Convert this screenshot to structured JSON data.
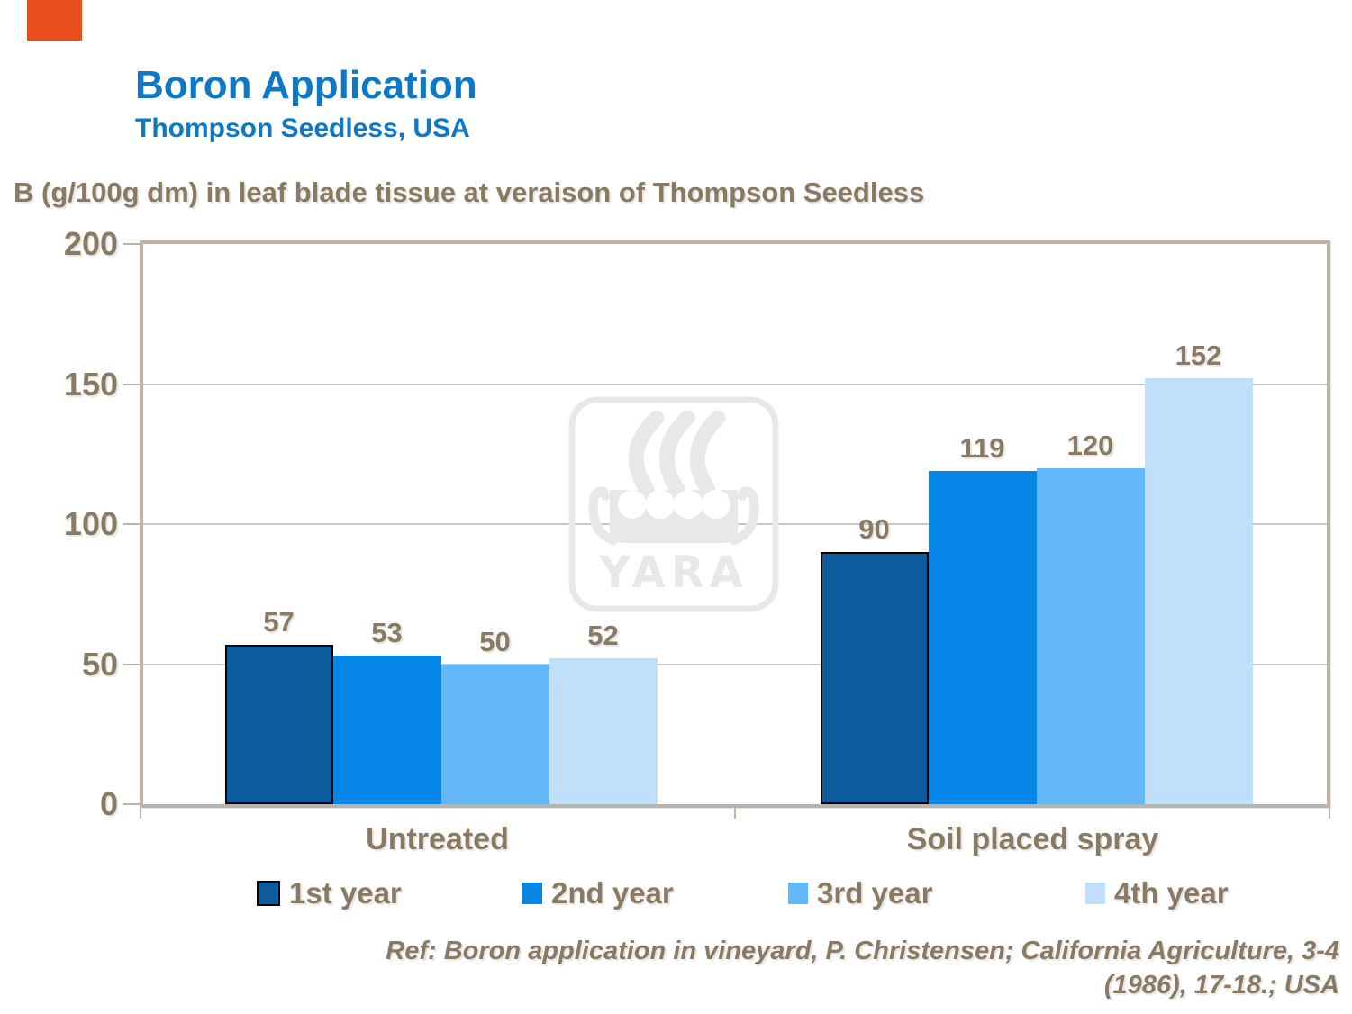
{
  "header": {
    "title": "Boron Application",
    "subtitle": "Thompson Seedless, USA"
  },
  "chart_data": {
    "type": "bar",
    "title": "B (g/100g dm) in leaf blade tissue at veraison of Thompson Seedless",
    "categories": [
      "Untreated",
      "Soil placed spray"
    ],
    "series": [
      {
        "name": "1st year",
        "values": [
          57,
          90
        ],
        "color": "#0B5B9D"
      },
      {
        "name": "2nd year",
        "values": [
          53,
          119
        ],
        "color": "#0585E6"
      },
      {
        "name": "3rd year",
        "values": [
          50,
          120
        ],
        "color": "#63B8FA"
      },
      {
        "name": "4th year",
        "values": [
          52,
          152
        ],
        "color": "#BFDFFB"
      }
    ],
    "ylim": [
      0,
      200
    ],
    "yticks": [
      0,
      50,
      100,
      150,
      200
    ],
    "grid": true,
    "legend_position": "bottom",
    "value_labels": true
  },
  "reference": {
    "line1": "Ref: Boron application in vineyard, P. Christensen; California Agriculture, 3-4",
    "line2": "(1986), 17-18.; USA"
  },
  "watermark": {
    "label": "YARA"
  },
  "colors": {
    "brand_blue": "#0C78C6",
    "text_brown": "#8A7963",
    "plot_border_tan": "#BDB2A6",
    "gridline_gray": "#C9C9C9",
    "watermark_gray": "#E9E7E8",
    "corner_accent_orange": "#E84D1E",
    "first_series_outline": "#000000"
  }
}
